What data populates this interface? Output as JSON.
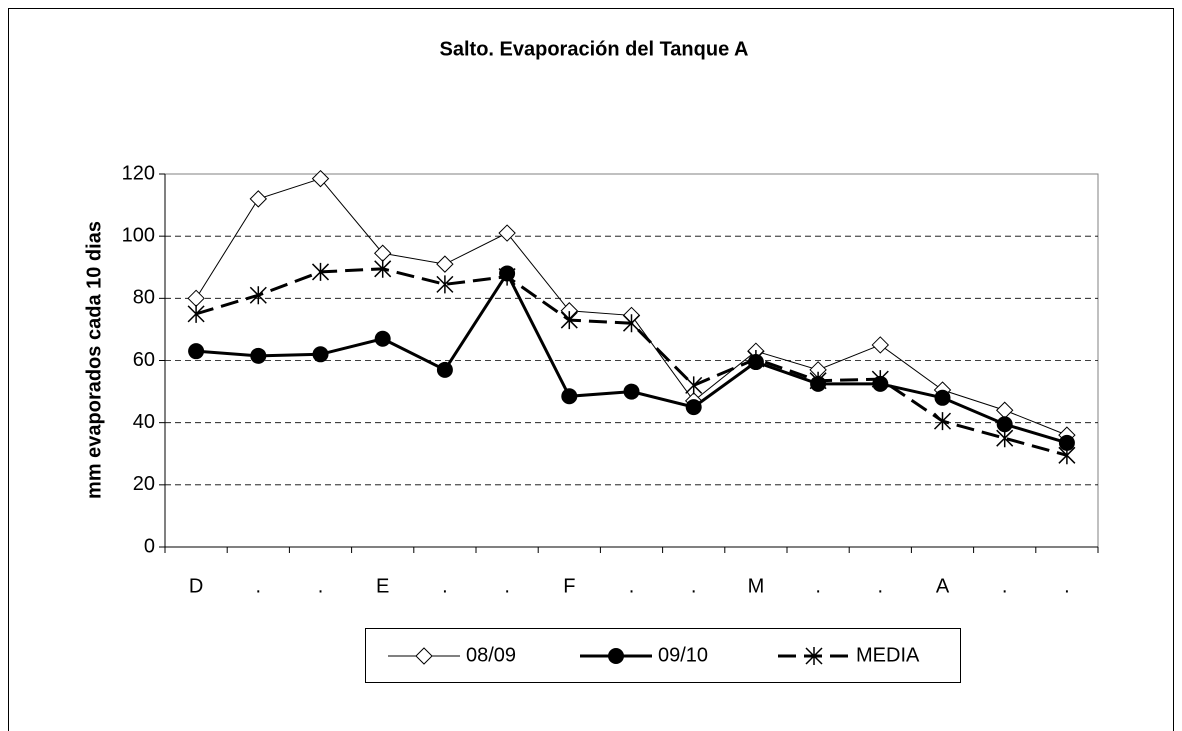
{
  "chart_data": {
    "type": "line",
    "title": "Salto. Evaporación del Tanque A",
    "y_label": "mm evaporados cada 10 dias",
    "categories": [
      "D",
      ".",
      ".",
      "E",
      ".",
      ".",
      "F",
      ".",
      ".",
      "M",
      ".",
      ".",
      "A",
      ".",
      "."
    ],
    "series": [
      {
        "name": "08/09",
        "color": "#000000",
        "marker": "diamond",
        "line_width": 1,
        "dashed": false,
        "values": [
          80,
          112,
          118.5,
          94.5,
          91,
          101,
          76,
          74.5,
          47,
          63,
          57,
          65,
          50.5,
          44,
          36
        ]
      },
      {
        "name": "09/10",
        "color": "#000000",
        "marker": "circle",
        "line_width": 3,
        "dashed": false,
        "values": [
          63,
          61.5,
          62,
          67,
          57,
          88,
          48.5,
          50,
          45,
          59.5,
          52.5,
          52.5,
          48,
          39.5,
          33.5
        ]
      },
      {
        "name": "MEDIA",
        "color": "#000000",
        "marker": "star",
        "line_width": 3,
        "dashed": true,
        "values": [
          75,
          81,
          88.5,
          89.5,
          84.5,
          87,
          73,
          72,
          52,
          60.5,
          53.5,
          54,
          40.5,
          35,
          29.5
        ]
      }
    ],
    "ylim": [
      0,
      120
    ],
    "yticks": [
      0,
      20,
      40,
      60,
      80,
      100,
      120
    ],
    "grid": true,
    "legend": "bottom"
  }
}
